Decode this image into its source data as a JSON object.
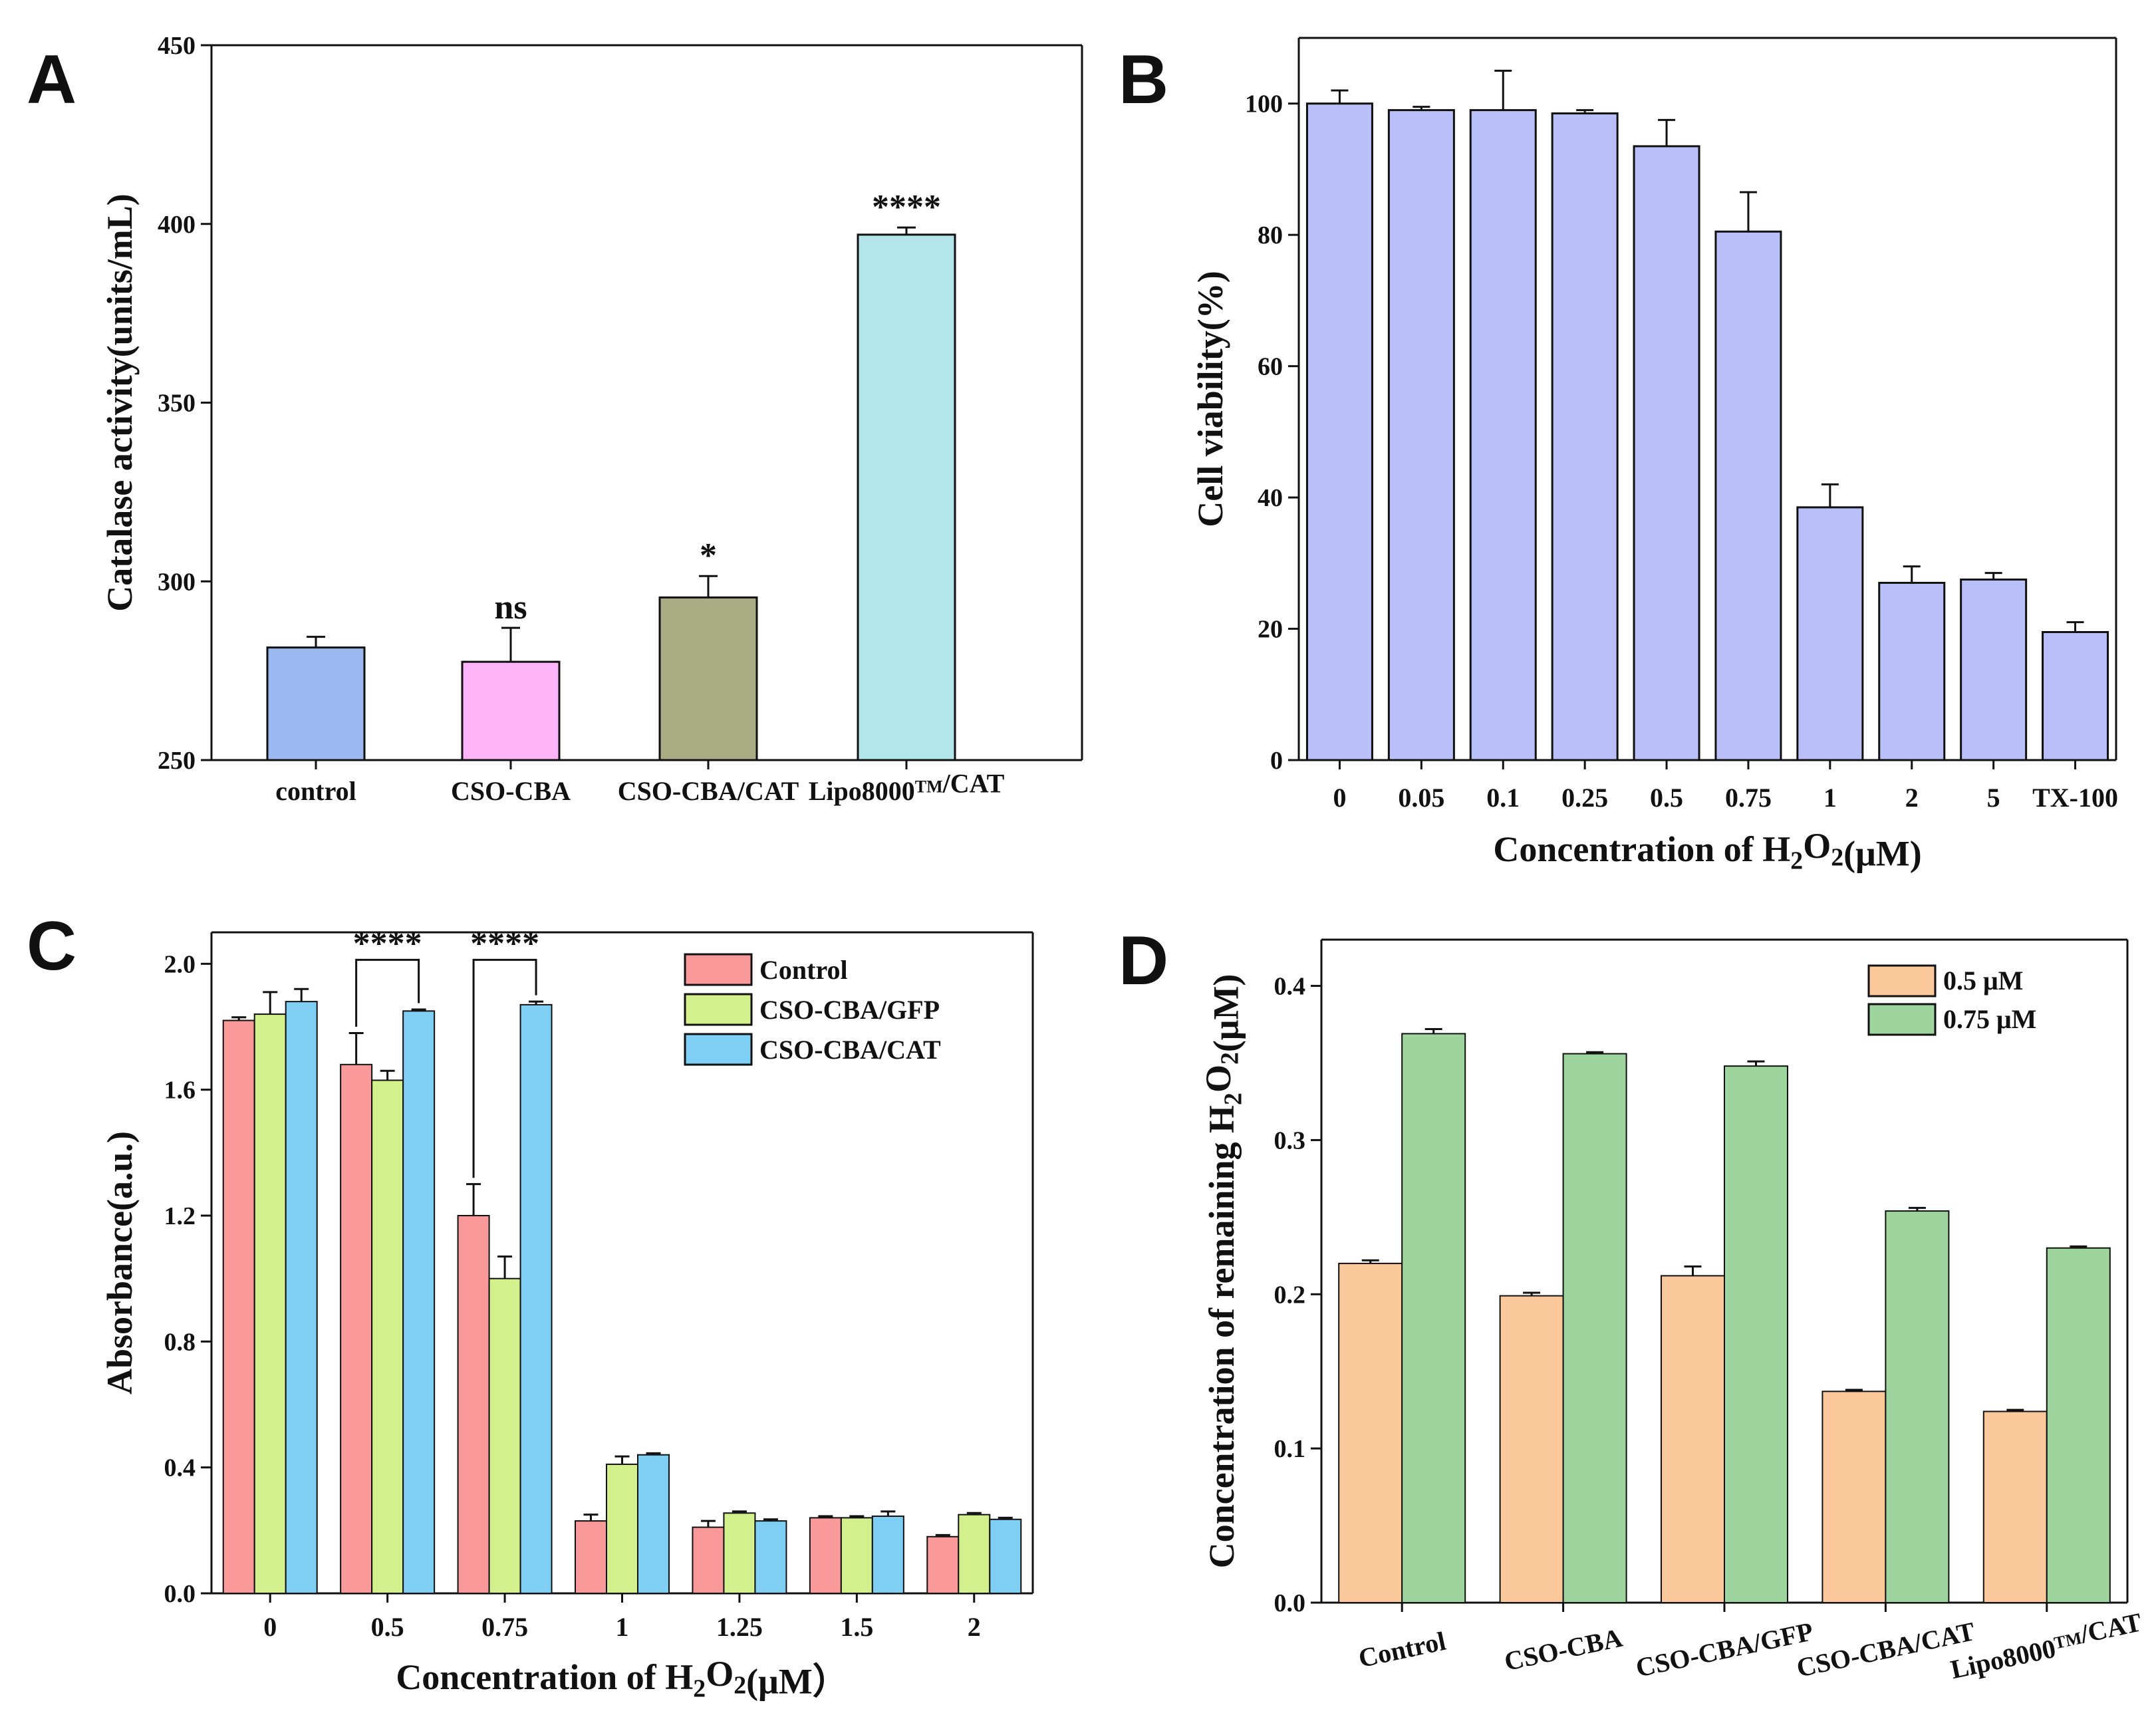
{
  "chart_data": [
    {
      "panel": "A",
      "type": "bar",
      "categories": [
        "control",
        "CSO-CBA",
        "CSO-CBA/CAT",
        "Lipo8000TM/CAT"
      ],
      "values": [
        281.5,
        277.5,
        295.5,
        397
      ],
      "errors": [
        3,
        9.5,
        6,
        2
      ],
      "colors": [
        "#9bb9f0",
        "#ffb4f7",
        "#a9ad84",
        "#b3e6ea"
      ],
      "significance": [
        "",
        "ns",
        "*",
        "****"
      ],
      "ylabel": "Catalase activity(units/mL)",
      "xlabel": "",
      "ylim": [
        250,
        450
      ],
      "yticks": [
        250,
        300,
        350,
        400,
        450
      ]
    },
    {
      "panel": "B",
      "type": "bar",
      "categories": [
        "0",
        "0.05",
        "0.1",
        "0.25",
        "0.5",
        "0.75",
        "1",
        "2",
        "5",
        "TX-100"
      ],
      "values": [
        100,
        99,
        99,
        98.5,
        93.5,
        80.5,
        38.5,
        27,
        27.5,
        19.5
      ],
      "errors": [
        2,
        0.5,
        6,
        0.5,
        4,
        6,
        3.5,
        2.5,
        1,
        1.5
      ],
      "color": "#b9bff9",
      "ylabel": "Cell viability(%)",
      "xlabel": "Concentration of H2O2(μM)",
      "ylim": [
        0,
        110
      ],
      "yticks": [
        0,
        20,
        40,
        60,
        80,
        100
      ]
    },
    {
      "panel": "C",
      "type": "bar",
      "categories": [
        "0",
        "0.5",
        "0.75",
        "1",
        "1.25",
        "1.5",
        "2"
      ],
      "series": [
        {
          "name": "Control",
          "color": "#fa9999",
          "values": [
            1.82,
            1.68,
            1.2,
            0.23,
            0.21,
            0.24,
            0.18
          ],
          "errors": [
            0.01,
            0.1,
            0.1,
            0.02,
            0.02,
            0.005,
            0.005
          ]
        },
        {
          "name": "CSO-CBA/GFP",
          "color": "#d2f18c",
          "values": [
            1.84,
            1.63,
            1.0,
            0.41,
            0.255,
            0.24,
            0.25
          ],
          "errors": [
            0.07,
            0.03,
            0.07,
            0.025,
            0.005,
            0.005,
            0.005
          ]
        },
        {
          "name": "CSO-CBA/CAT",
          "color": "#7fcff5",
          "values": [
            1.88,
            1.85,
            1.87,
            0.44,
            0.23,
            0.245,
            0.235
          ],
          "errors": [
            0.04,
            0.005,
            0.01,
            0.005,
            0.005,
            0.015,
            0.005
          ]
        }
      ],
      "significance": [
        {
          "label": "****",
          "group": "0.5"
        },
        {
          "label": "****",
          "group": "0.75"
        }
      ],
      "ylabel": "Absorbance(a.u.)",
      "xlabel": "Concentration of H2O2(μM）",
      "ylim": [
        0,
        2.1
      ],
      "yticks": [
        "0.0",
        "0.4",
        "0.8",
        "1.2",
        "1.6",
        "2.0"
      ],
      "legend": "top-right"
    },
    {
      "panel": "D",
      "type": "bar",
      "categories": [
        "Control",
        "CSO-CBA",
        "CSO-CBA/GFP",
        "CSO-CBA/CAT",
        "Lipo8000TM/CAT"
      ],
      "series": [
        {
          "name": "0.5 μM",
          "color": "#fac89a",
          "values": [
            0.22,
            0.199,
            0.212,
            0.137,
            0.124
          ],
          "errors": [
            0.002,
            0.002,
            0.006,
            0.001,
            0.001
          ]
        },
        {
          "name": "0.75 μM",
          "color": "#9ed59f",
          "values": [
            0.369,
            0.356,
            0.348,
            0.254,
            0.23
          ],
          "errors": [
            0.003,
            0.001,
            0.003,
            0.002,
            0.001
          ]
        }
      ],
      "ylabel": "Concentration of remaining H2O2(μM)",
      "xlabel": "",
      "ylim": [
        0,
        0.43
      ],
      "yticks": [
        "0.0",
        "0.1",
        "0.2",
        "0.3",
        "0.4"
      ],
      "legend": "top-right"
    }
  ]
}
